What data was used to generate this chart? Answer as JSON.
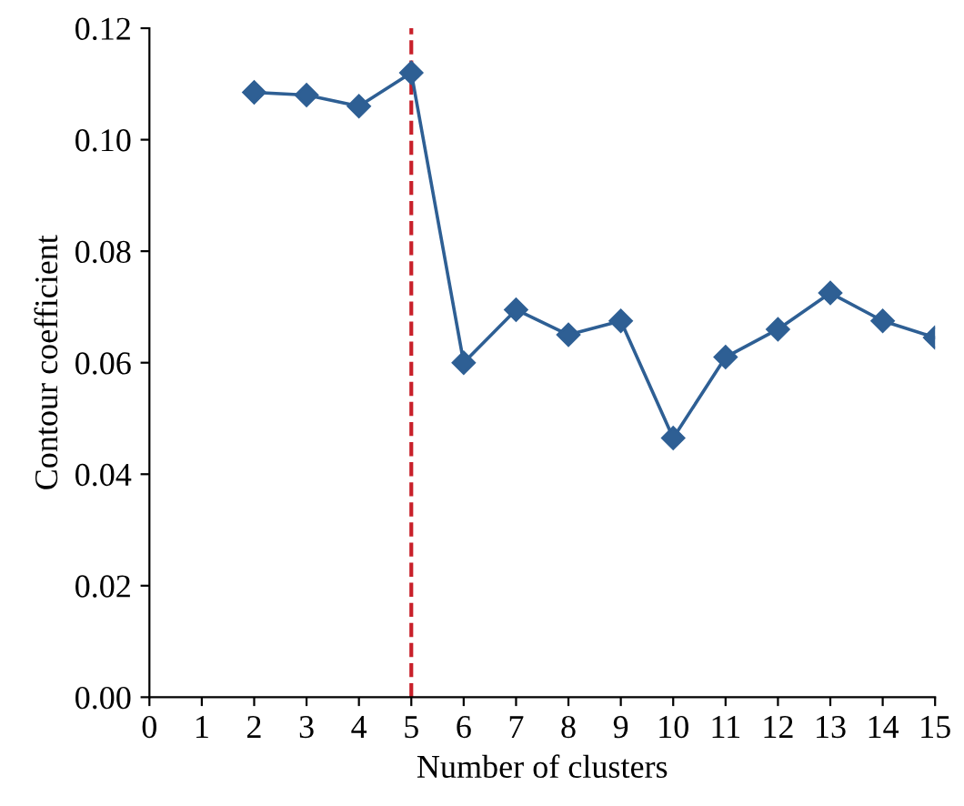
{
  "chart_data": {
    "type": "line",
    "xlabel": "Number of clusters",
    "ylabel": "Contour coefficient",
    "x": [
      2,
      3,
      4,
      5,
      6,
      7,
      8,
      9,
      10,
      11,
      12,
      13,
      14,
      15
    ],
    "series": [
      {
        "color": "#2e5f94",
        "values": [
          0.1085,
          0.108,
          0.106,
          0.112,
          0.06,
          0.0695,
          0.065,
          0.0675,
          0.0465,
          0.061,
          0.066,
          0.0725,
          0.0675,
          0.0645
        ]
      }
    ],
    "xlim": [
      0,
      15
    ],
    "xticks": [
      0,
      1,
      2,
      3,
      4,
      5,
      6,
      7,
      8,
      9,
      10,
      11,
      12,
      13,
      14,
      15
    ],
    "ylim": [
      0,
      0.12
    ],
    "yticks": [
      {
        "value": 0,
        "label": "0.00"
      },
      {
        "value": 0.02,
        "label": "0.02"
      },
      {
        "value": 0.04,
        "label": "0.04"
      },
      {
        "value": 0.06,
        "label": "0.06"
      },
      {
        "value": 0.08,
        "label": "0.08"
      },
      {
        "value": 0.1,
        "label": "0.10"
      },
      {
        "value": 0.12,
        "label": "0.12"
      }
    ],
    "ref_lines": [
      {
        "axis": "x",
        "value": 5,
        "color": "#c8202a",
        "line_style": "dashed"
      }
    ],
    "marker": "diamond",
    "line_style": "solid",
    "grid": false,
    "legend": false
  }
}
